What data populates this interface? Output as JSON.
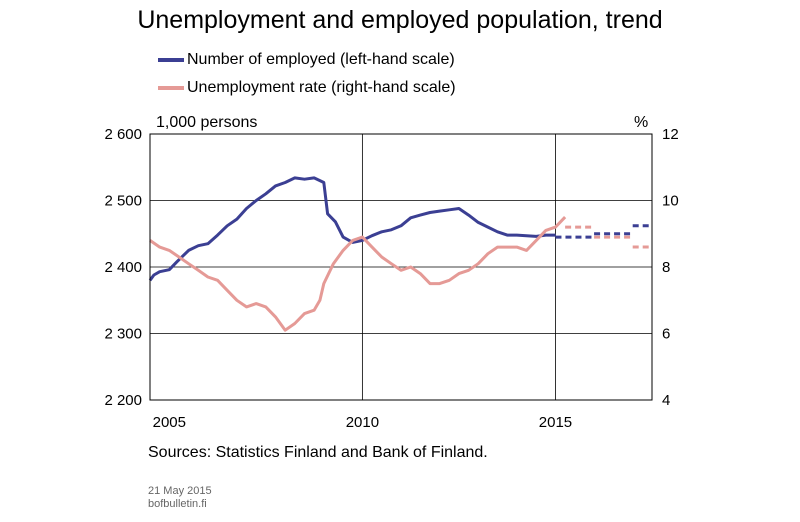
{
  "chart_data": {
    "type": "line",
    "title": "Unemployment and employed population, trend",
    "left_axis": {
      "unit": "1,000 persons",
      "range": [
        2200,
        2600
      ],
      "ticks": [
        "2 200",
        "2 300",
        "2 400",
        "2 500",
        "2 600"
      ],
      "tick_values": [
        2200,
        2300,
        2400,
        2500,
        2600
      ]
    },
    "right_axis": {
      "unit": "%",
      "range": [
        4,
        12
      ],
      "ticks": [
        "4",
        "6",
        "8",
        "10",
        "12"
      ],
      "tick_values": [
        4,
        6,
        8,
        10,
        12
      ]
    },
    "x_axis": {
      "range": [
        2004.5,
        2017.5
      ],
      "ticks": [
        "2005",
        "2010",
        "2015"
      ],
      "tick_values": [
        2005,
        2010,
        2015
      ],
      "gridlines": [
        2010,
        2015
      ]
    },
    "grid": true,
    "series": [
      {
        "name": "Number of employed (left-hand scale)",
        "axis": "left",
        "color": "#3b3f93",
        "x": [
          2004.5,
          2004.6,
          2004.75,
          2005.0,
          2005.2,
          2005.5,
          2005.75,
          2006.0,
          2006.25,
          2006.5,
          2006.75,
          2007.0,
          2007.25,
          2007.5,
          2007.75,
          2008.0,
          2008.25,
          2008.5,
          2008.75,
          2008.9,
          2009.0,
          2009.1,
          2009.3,
          2009.5,
          2009.75,
          2010.0,
          2010.25,
          2010.5,
          2010.75,
          2011.0,
          2011.25,
          2011.5,
          2011.75,
          2012.0,
          2012.25,
          2012.5,
          2012.75,
          2013.0,
          2013.25,
          2013.5,
          2013.75,
          2014.0,
          2014.25,
          2014.5,
          2014.75,
          2015.0
        ],
        "values": [
          2380,
          2388,
          2393,
          2396,
          2408,
          2425,
          2432,
          2435,
          2448,
          2462,
          2472,
          2488,
          2500,
          2510,
          2522,
          2527,
          2534,
          2532,
          2534,
          2530,
          2527,
          2480,
          2468,
          2445,
          2437,
          2440,
          2447,
          2453,
          2456,
          2462,
          2474,
          2478,
          2482,
          2484,
          2486,
          2488,
          2478,
          2467,
          2460,
          2453,
          2448,
          2448,
          2447,
          2446,
          2448,
          2448
        ]
      },
      {
        "name": "Unemployment rate (right-hand scale)",
        "axis": "right",
        "color": "#e59a96",
        "x": [
          2004.5,
          2004.75,
          2005.0,
          2005.25,
          2005.5,
          2005.75,
          2006.0,
          2006.25,
          2006.5,
          2006.75,
          2007.0,
          2007.25,
          2007.5,
          2007.75,
          2008.0,
          2008.25,
          2008.5,
          2008.75,
          2008.9,
          2009.0,
          2009.25,
          2009.5,
          2009.75,
          2010.0,
          2010.25,
          2010.5,
          2010.75,
          2011.0,
          2011.25,
          2011.5,
          2011.75,
          2012.0,
          2012.25,
          2012.5,
          2012.75,
          2013.0,
          2013.25,
          2013.5,
          2013.75,
          2014.0,
          2014.25,
          2014.5,
          2014.75,
          2015.0,
          2015.25
        ],
        "values": [
          8.8,
          8.6,
          8.5,
          8.3,
          8.1,
          7.9,
          7.7,
          7.6,
          7.3,
          7.0,
          6.8,
          6.9,
          6.8,
          6.5,
          6.1,
          6.3,
          6.6,
          6.7,
          7.0,
          7.5,
          8.1,
          8.5,
          8.8,
          8.9,
          8.6,
          8.3,
          8.1,
          7.9,
          8.0,
          7.8,
          7.5,
          7.5,
          7.6,
          7.8,
          7.9,
          8.1,
          8.4,
          8.6,
          8.6,
          8.6,
          8.5,
          8.8,
          9.1,
          9.2,
          9.5
        ]
      }
    ],
    "forecasts": [
      {
        "series": "Number of employed (left-hand scale)",
        "axis": "left",
        "color": "#3b3f93",
        "segments": [
          {
            "x": [
              2015.0,
              2016.0
            ],
            "value": 2445
          },
          {
            "x": [
              2016.0,
              2017.0
            ],
            "value": 2450
          },
          {
            "x": [
              2017.0,
              2018.0
            ],
            "value": 2462
          }
        ]
      },
      {
        "series": "Unemployment rate (right-hand scale)",
        "axis": "right",
        "color": "#e59a96",
        "segments": [
          {
            "x": [
              2015.25,
              2016.0
            ],
            "value": 9.2
          },
          {
            "x": [
              2016.0,
              2017.0
            ],
            "value": 8.9
          },
          {
            "x": [
              2017.0,
              2018.0
            ],
            "value": 8.6
          }
        ]
      }
    ]
  },
  "footer": {
    "sources": "Sources: Statistics Finland and Bank of Finland.",
    "date": "21 May 2015",
    "site": "bofbulletin.fi"
  }
}
